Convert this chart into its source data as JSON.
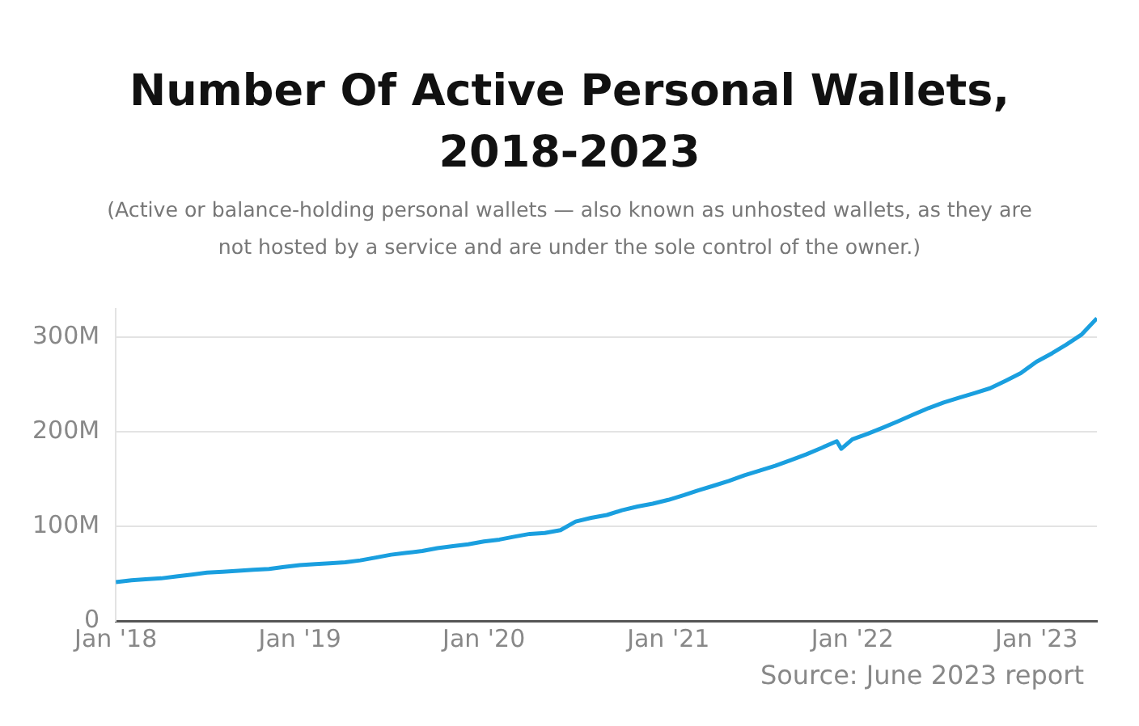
{
  "chart_data": {
    "type": "line",
    "title": "Number Of Active Personal Wallets, 2018-2023",
    "subtitle": "(Active or balance-holding personal wallets — also known as unhosted wallets, as they are not hosted by a service and are under the sole control of the owner.)",
    "x": [
      "2018-01",
      "2018-02",
      "2018-03",
      "2018-04",
      "2018-05",
      "2018-06",
      "2018-07",
      "2018-08",
      "2018-09",
      "2018-10",
      "2018-11",
      "2018-12",
      "2019-01",
      "2019-02",
      "2019-03",
      "2019-04",
      "2019-05",
      "2019-06",
      "2019-07",
      "2019-08",
      "2019-09",
      "2019-10",
      "2019-11",
      "2019-12",
      "2020-01",
      "2020-02",
      "2020-03",
      "2020-04",
      "2020-05",
      "2020-06",
      "2020-07",
      "2020-08",
      "2020-09",
      "2020-10",
      "2020-11",
      "2020-12",
      "2021-01",
      "2021-02",
      "2021-03",
      "2021-04",
      "2021-05",
      "2021-06",
      "2021-07",
      "2021-08",
      "2021-09",
      "2021-10",
      "2021-11",
      "2021-12",
      "2021-12-10",
      "2022-01",
      "2022-02",
      "2022-03",
      "2022-04",
      "2022-05",
      "2022-06",
      "2022-07",
      "2022-08",
      "2022-09",
      "2022-10",
      "2022-11",
      "2022-12",
      "2023-01",
      "2023-02",
      "2023-03",
      "2023-04",
      "2023-05"
    ],
    "series": [
      {
        "color": "#1a9fdf",
        "values": [
          41,
          43,
          44,
          45,
          47,
          49,
          51,
          52,
          53,
          54,
          55,
          57,
          59,
          60,
          61,
          62,
          64,
          67,
          70,
          72,
          74,
          77,
          79,
          81,
          84,
          86,
          89,
          92,
          93,
          96,
          105,
          109,
          112,
          117,
          121,
          124,
          128,
          133,
          138,
          143,
          148,
          154,
          159,
          164,
          170,
          176,
          183,
          190,
          182,
          192,
          198,
          204,
          211,
          218,
          225,
          231,
          236,
          241,
          246,
          254,
          262,
          274,
          283,
          292,
          303,
          320
        ]
      }
    ],
    "xlim": [
      "2018-01",
      "2023-05"
    ],
    "xticks": [
      {
        "value": "2018-01",
        "label": "Jan '18"
      },
      {
        "value": "2019-01",
        "label": "Jan '19"
      },
      {
        "value": "2020-01",
        "label": "Jan '20"
      },
      {
        "value": "2021-01",
        "label": "Jan '21"
      },
      {
        "value": "2022-01",
        "label": "Jan '22"
      },
      {
        "value": "2023-01",
        "label": "Jan '23"
      }
    ],
    "yticks": [
      0,
      {
        "value": 100,
        "label": "100M"
      },
      {
        "value": 200,
        "label": "200M"
      },
      {
        "value": 300,
        "label": "300M"
      }
    ],
    "ylim": [
      0,
      330
    ],
    "grid": "y",
    "legend": false,
    "marker": "none",
    "line_style": "solid",
    "annotations": [
      "Source: June 2023 report"
    ]
  }
}
